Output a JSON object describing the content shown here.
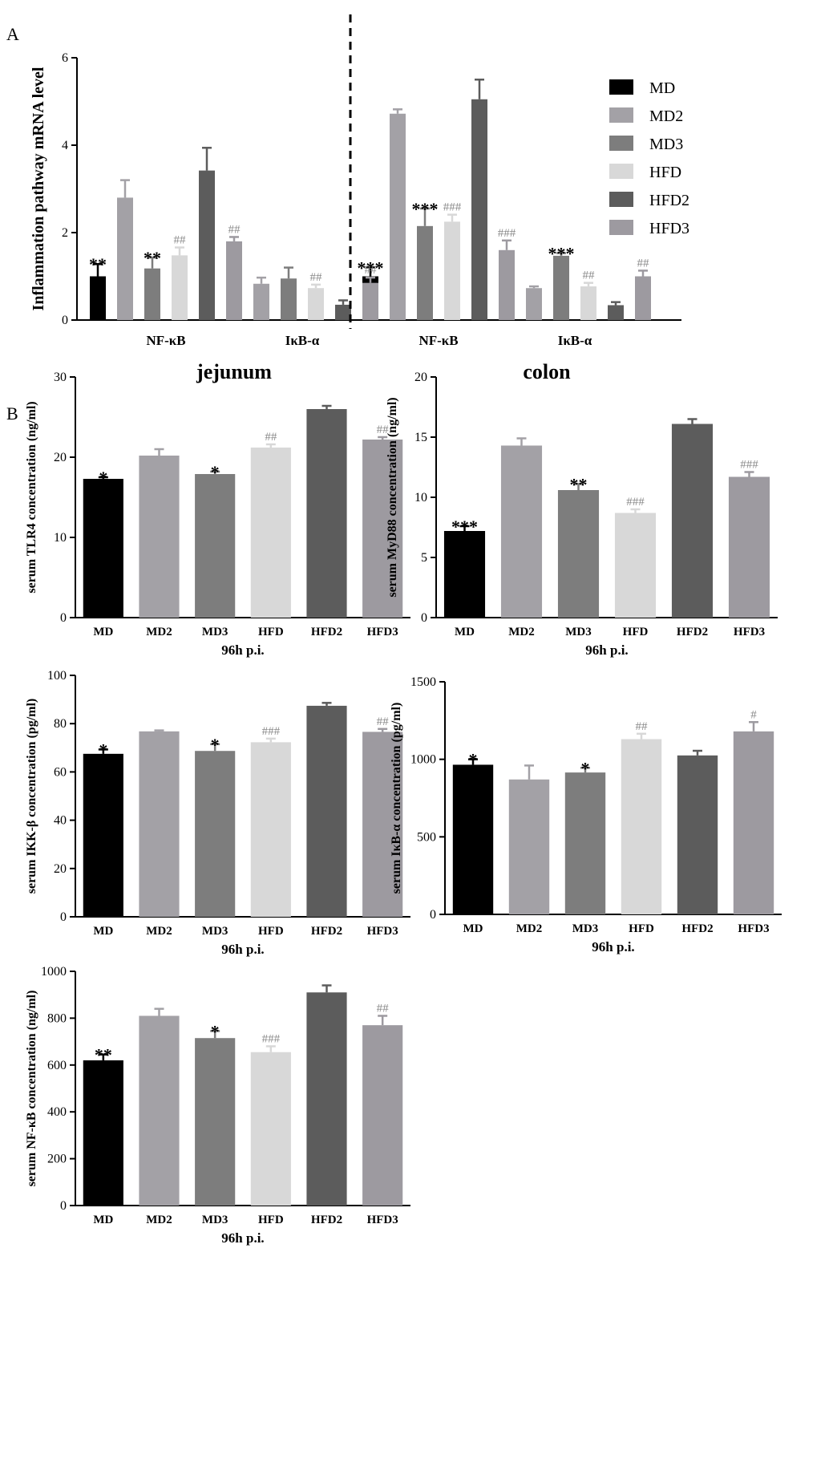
{
  "colors": {
    "MD": "#000000",
    "MD2": "#a3a1a6",
    "MD3": "#7d7d7d",
    "HFD": "#d8d8d8",
    "HFD2": "#5c5c5c",
    "HFD3": "#9d9aa0"
  },
  "panel_labels": {
    "a": "A",
    "b": "B"
  },
  "chart_data": [
    {
      "id": "A",
      "type": "bar",
      "title": "",
      "ylabel": "Inflammation pathway mRNA level",
      "xlabel": "",
      "ylim": [
        0,
        6
      ],
      "yticks": [
        0,
        2,
        4,
        6
      ],
      "categories": [
        "NF-κB",
        "IκB-α",
        "NF-κB",
        "IκB-α"
      ],
      "legend": {
        "position": "right",
        "entries": [
          "MD",
          "MD2",
          "MD3",
          "HFD",
          "HFD2",
          "HFD3"
        ]
      },
      "divider": "dashed line between groups 2 and 3",
      "series": [
        {
          "name": "MD",
          "values": [
            1.0,
            1.0,
            1.0,
            1.0
          ],
          "errors": [
            0.28,
            0.28,
            0.2,
            0.28
          ],
          "sig": [
            "**",
            "",
            "***",
            ""
          ]
        },
        {
          "name": "MD2",
          "values": [
            2.8,
            0.83,
            4.72,
            0.73
          ],
          "errors": [
            0.4,
            0.14,
            0.1,
            0.04
          ],
          "sig": [
            "",
            "",
            "",
            ""
          ]
        },
        {
          "name": "MD3",
          "values": [
            1.18,
            0.95,
            2.15,
            1.47
          ],
          "errors": [
            0.25,
            0.25,
            0.4,
            0.06
          ],
          "sig": [
            "**",
            "",
            "***",
            "***"
          ]
        },
        {
          "name": "HFD",
          "values": [
            1.48,
            0.73,
            2.25,
            0.77
          ],
          "errors": [
            0.18,
            0.08,
            0.16,
            0.08
          ],
          "sig": [
            "##",
            "##",
            "###",
            "##"
          ]
        },
        {
          "name": "HFD2",
          "values": [
            3.42,
            0.35,
            5.05,
            0.34
          ],
          "errors": [
            0.52,
            0.1,
            0.45,
            0.07
          ],
          "sig": [
            "",
            "",
            "",
            ""
          ]
        },
        {
          "name": "HFD3",
          "values": [
            1.8,
            0.85,
            1.6,
            1.0
          ],
          "errors": [
            0.1,
            0.12,
            0.22,
            0.13
          ],
          "sig": [
            "##",
            "##",
            "###",
            "##"
          ]
        }
      ]
    },
    {
      "id": "TLR4",
      "type": "bar",
      "title": "jejunum",
      "ylabel": "serum TLR4 concentration (ng/ml)",
      "xlabel": "96h p.i.",
      "ylim": [
        0,
        30
      ],
      "yticks": [
        0,
        10,
        20,
        30
      ],
      "categories": [
        "MD",
        "MD2",
        "MD3",
        "HFD",
        "HFD2",
        "HFD3"
      ],
      "values": [
        17.3,
        20.2,
        17.9,
        21.2,
        26.0,
        22.2
      ],
      "errors": [
        0.2,
        0.8,
        0.3,
        0.4,
        0.4,
        0.3
      ],
      "sig": [
        "*",
        "",
        "*",
        "##",
        "",
        "##"
      ]
    },
    {
      "id": "MyD88",
      "type": "bar",
      "title": "colon",
      "ylabel": "serum MyD88 concentration (ng/ml)",
      "xlabel": "96h p.i.",
      "ylim": [
        0,
        20
      ],
      "yticks": [
        0,
        5,
        10,
        15,
        20
      ],
      "categories": [
        "MD",
        "MD2",
        "MD3",
        "HFD",
        "HFD2",
        "HFD3"
      ],
      "values": [
        7.2,
        14.3,
        10.6,
        8.7,
        16.1,
        11.7
      ],
      "errors": [
        0.4,
        0.6,
        0.5,
        0.3,
        0.4,
        0.4
      ],
      "sig": [
        "***",
        "",
        "**",
        "###",
        "",
        "###"
      ]
    },
    {
      "id": "IKK",
      "type": "bar",
      "title": "",
      "ylabel": "serum IKK-β concentration (pg/ml)",
      "xlabel": "96h p.i.",
      "ylim": [
        0,
        100
      ],
      "yticks": [
        0,
        20,
        40,
        60,
        80,
        100
      ],
      "categories": [
        "MD",
        "MD2",
        "MD3",
        "HFD",
        "HFD2",
        "HFD3"
      ],
      "values": [
        67.5,
        76.8,
        68.7,
        72.3,
        87.4,
        76.6
      ],
      "errors": [
        1.8,
        0.4,
        2.8,
        1.5,
        1.2,
        1.2
      ],
      "sig": [
        "*",
        "",
        "*",
        "###",
        "",
        "##"
      ]
    },
    {
      "id": "IkB",
      "type": "bar",
      "title": "",
      "ylabel": "serum IκB-α concentration (pg/ml)",
      "xlabel": "96h p.i.",
      "ylim": [
        0,
        1500
      ],
      "yticks": [
        0,
        500,
        1000,
        1500
      ],
      "categories": [
        "MD",
        "MD2",
        "MD3",
        "HFD",
        "HFD2",
        "HFD3"
      ],
      "values": [
        965,
        870,
        915,
        1130,
        1025,
        1180
      ],
      "errors": [
        35,
        90,
        30,
        35,
        30,
        60
      ],
      "sig": [
        "*",
        "",
        "*",
        "##",
        "",
        "#"
      ]
    },
    {
      "id": "NFkB",
      "type": "bar",
      "title": "",
      "ylabel": "serum NF-κB concentration (ng/ml)",
      "xlabel": "96h p.i.",
      "ylim": [
        0,
        1000
      ],
      "yticks": [
        0,
        200,
        400,
        600,
        800,
        1000
      ],
      "categories": [
        "MD",
        "MD2",
        "MD3",
        "HFD",
        "HFD2",
        "HFD3"
      ],
      "values": [
        620,
        810,
        715,
        655,
        910,
        770
      ],
      "errors": [
        25,
        30,
        30,
        25,
        30,
        40
      ],
      "sig": [
        "**",
        "",
        "*",
        "###",
        "",
        "##"
      ]
    }
  ]
}
